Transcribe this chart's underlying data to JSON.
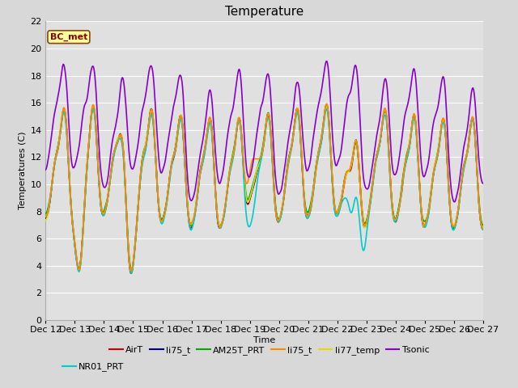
{
  "title": "Temperature",
  "ylabel": "Temperatures (C)",
  "xlabel": "Time",
  "ylim": [
    0,
    22
  ],
  "yticks": [
    0,
    2,
    4,
    6,
    8,
    10,
    12,
    14,
    16,
    18,
    20,
    22
  ],
  "xtick_labels": [
    "Dec 12",
    "Dec 13",
    "Dec 14",
    "Dec 15",
    "Dec 16",
    "Dec 17",
    "Dec 18",
    "Dec 19",
    "Dec 20",
    "Dec 21",
    "Dec 22",
    "Dec 23",
    "Dec 24",
    "Dec 25",
    "Dec 26",
    "Dec 27"
  ],
  "bc_met_label": "BC_met",
  "series_colors": {
    "AirT": "#cc0000",
    "li75_t_blue": "#000088",
    "AM25T_PRT": "#00aa00",
    "li75_t_orange": "#ff8800",
    "li77_temp": "#dddd00",
    "Tsonic": "#8800cc",
    "NR01_PRT": "#00cccc"
  },
  "legend_entries": [
    {
      "label": "AirT",
      "color": "#cc0000"
    },
    {
      "label": "li75_t",
      "color": "#000088"
    },
    {
      "label": "AM25T_PRT",
      "color": "#00aa00"
    },
    {
      "label": "li75_t",
      "color": "#ff8800"
    },
    {
      "label": "li77_temp",
      "color": "#dddd00"
    },
    {
      "label": "Tsonic",
      "color": "#8800cc"
    },
    {
      "label": "NR01_PRT",
      "color": "#00cccc"
    }
  ],
  "fig_bg_color": "#d8d8d8",
  "plot_bg_color": "#e0e0e0",
  "grid_color": "#ffffff",
  "title_fontsize": 11,
  "axis_fontsize": 8,
  "tick_fontsize": 8,
  "n_points": 720
}
